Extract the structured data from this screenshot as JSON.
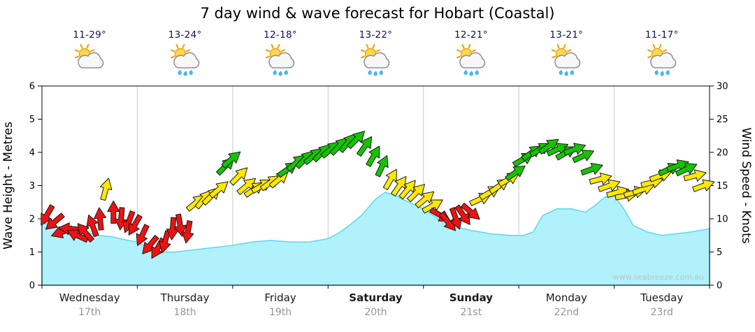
{
  "title": "7 day wind & wave forecast for Hobart (Coastal)",
  "watermark": "www.seabreeze.com.au",
  "days": [
    {
      "name": "Wednesday",
      "date": "17th",
      "temp": "11-29°",
      "icon": "partly-cloudy",
      "weekend": false
    },
    {
      "name": "Thursday",
      "date": "18th",
      "temp": "13-24°",
      "icon": "showers",
      "weekend": false
    },
    {
      "name": "Friday",
      "date": "19th",
      "temp": "12-18°",
      "icon": "showers",
      "weekend": false
    },
    {
      "name": "Saturday",
      "date": "20th",
      "temp": "13-22°",
      "icon": "showers",
      "weekend": true
    },
    {
      "name": "Sunday",
      "date": "21st",
      "temp": "12-21°",
      "icon": "showers",
      "weekend": true
    },
    {
      "name": "Monday",
      "date": "22nd",
      "temp": "13-21°",
      "icon": "showers",
      "weekend": false
    },
    {
      "name": "Tuesday",
      "date": "23rd",
      "temp": "11-17°",
      "icon": "showers",
      "weekend": false
    }
  ],
  "chart_data": {
    "type": "area",
    "title": "7 day wind & wave forecast for Hobart (Coastal)",
    "left_axis": {
      "label": "Wave Height - Metres",
      "min": 0,
      "max": 6,
      "ticks": [
        0,
        1,
        2,
        3,
        4,
        5,
        6
      ]
    },
    "right_axis": {
      "label": "Wind Speed - Knots",
      "min": 0,
      "max": 30,
      "ticks": [
        0,
        5,
        10,
        15,
        20,
        25,
        30
      ]
    },
    "x_axis": {
      "labels": [
        "Wednesday",
        "Thursday",
        "Friday",
        "Saturday",
        "Sunday",
        "Monday",
        "Tuesday"
      ],
      "dates": [
        "17th",
        "18th",
        "19th",
        "20th",
        "21st",
        "22nd",
        "23rd"
      ]
    },
    "grid": {
      "day_separators": true,
      "separator_color": "#c9c9c9"
    },
    "wave_height_metres": {
      "name": "Wave Height",
      "fill": "#b0f1fb",
      "stroke": "#5cd8ea",
      "point_format": [
        "day",
        "metres"
      ],
      "points": [
        [
          0,
          1.9
        ],
        [
          0.15,
          1.75
        ],
        [
          0.3,
          1.55
        ],
        [
          0.45,
          1.6
        ],
        [
          0.6,
          1.5
        ],
        [
          0.75,
          1.45
        ],
        [
          0.9,
          1.35
        ],
        [
          1.0,
          1.3
        ],
        [
          1.1,
          1.15
        ],
        [
          1.25,
          1.0
        ],
        [
          1.4,
          1.0
        ],
        [
          1.55,
          1.05
        ],
        [
          1.7,
          1.1
        ],
        [
          1.85,
          1.15
        ],
        [
          2.0,
          1.2
        ],
        [
          2.2,
          1.3
        ],
        [
          2.4,
          1.35
        ],
        [
          2.6,
          1.3
        ],
        [
          2.8,
          1.3
        ],
        [
          3.0,
          1.4
        ],
        [
          3.1,
          1.55
        ],
        [
          3.2,
          1.75
        ],
        [
          3.35,
          2.1
        ],
        [
          3.5,
          2.6
        ],
        [
          3.6,
          2.8
        ],
        [
          3.7,
          2.7
        ],
        [
          3.85,
          2.5
        ],
        [
          4.0,
          2.3
        ],
        [
          4.1,
          2.1
        ],
        [
          4.2,
          1.9
        ],
        [
          4.35,
          1.75
        ],
        [
          4.5,
          1.65
        ],
        [
          4.7,
          1.55
        ],
        [
          4.9,
          1.5
        ],
        [
          5.05,
          1.5
        ],
        [
          5.15,
          1.6
        ],
        [
          5.25,
          2.1
        ],
        [
          5.4,
          2.3
        ],
        [
          5.55,
          2.3
        ],
        [
          5.7,
          2.2
        ],
        [
          5.8,
          2.4
        ],
        [
          5.9,
          2.65
        ],
        [
          6.0,
          2.7
        ],
        [
          6.1,
          2.3
        ],
        [
          6.2,
          1.8
        ],
        [
          6.35,
          1.6
        ],
        [
          6.5,
          1.5
        ],
        [
          6.65,
          1.55
        ],
        [
          6.8,
          1.6
        ],
        [
          7.0,
          1.7
        ]
      ]
    },
    "wind_knots": {
      "name": "Wind Speed & Direction",
      "colors": {
        "red": "#ee1111",
        "yellow": "#ffe800",
        "green": "#15c400"
      },
      "point_format": [
        "day",
        "knots",
        "direction_deg_cw_from_east",
        "color"
      ],
      "points": [
        [
          0.05,
          10.5,
          120,
          "red"
        ],
        [
          0.13,
          9.5,
          140,
          "red"
        ],
        [
          0.21,
          8.0,
          160,
          "red"
        ],
        [
          0.29,
          8.5,
          185,
          "red"
        ],
        [
          0.37,
          7.5,
          205,
          "red"
        ],
        [
          0.45,
          8.0,
          230,
          "red"
        ],
        [
          0.53,
          9.0,
          250,
          "red"
        ],
        [
          0.61,
          10.0,
          265,
          "red"
        ],
        [
          0.67,
          14.5,
          285,
          "yellow"
        ],
        [
          0.75,
          11.0,
          270,
          "red"
        ],
        [
          0.83,
          10.0,
          95,
          "red"
        ],
        [
          0.91,
          9.5,
          110,
          "red"
        ],
        [
          0.97,
          9.0,
          120,
          "red"
        ],
        [
          1.05,
          7.5,
          115,
          "red"
        ],
        [
          1.13,
          6.0,
          130,
          "red"
        ],
        [
          1.21,
          5.5,
          120,
          "red"
        ],
        [
          1.29,
          6.5,
          105,
          "red"
        ],
        [
          1.37,
          8.5,
          95,
          "red"
        ],
        [
          1.45,
          9.0,
          80,
          "red"
        ],
        [
          1.53,
          8.0,
          100,
          "red"
        ],
        [
          1.62,
          12.5,
          320,
          "yellow"
        ],
        [
          1.7,
          13.0,
          310,
          "yellow"
        ],
        [
          1.78,
          13.5,
          315,
          "yellow"
        ],
        [
          1.86,
          14.5,
          320,
          "yellow"
        ],
        [
          1.93,
          18.0,
          315,
          "green"
        ],
        [
          1.99,
          19.0,
          320,
          "green"
        ],
        [
          2.07,
          16.5,
          315,
          "yellow"
        ],
        [
          2.15,
          15.0,
          320,
          "yellow"
        ],
        [
          2.23,
          14.5,
          325,
          "yellow"
        ],
        [
          2.31,
          15.0,
          330,
          "yellow"
        ],
        [
          2.4,
          15.5,
          325,
          "yellow"
        ],
        [
          2.49,
          16.0,
          320,
          "yellow"
        ],
        [
          2.58,
          17.5,
          325,
          "green"
        ],
        [
          2.67,
          18.5,
          320,
          "green"
        ],
        [
          2.76,
          19.0,
          315,
          "green"
        ],
        [
          2.85,
          19.5,
          320,
          "green"
        ],
        [
          2.94,
          20.0,
          315,
          "green"
        ],
        [
          3.03,
          20.5,
          320,
          "green"
        ],
        [
          3.12,
          21.0,
          315,
          "green"
        ],
        [
          3.21,
          21.5,
          310,
          "green"
        ],
        [
          3.3,
          22.0,
          315,
          "green"
        ],
        [
          3.39,
          21.0,
          305,
          "green"
        ],
        [
          3.48,
          19.5,
          300,
          "green"
        ],
        [
          3.57,
          18.0,
          295,
          "green"
        ],
        [
          3.66,
          16.0,
          300,
          "yellow"
        ],
        [
          3.75,
          15.0,
          305,
          "yellow"
        ],
        [
          3.84,
          14.5,
          310,
          "yellow"
        ],
        [
          3.93,
          14.0,
          315,
          "yellow"
        ],
        [
          4.02,
          13.0,
          320,
          "yellow"
        ],
        [
          4.1,
          12.0,
          330,
          "yellow"
        ],
        [
          4.18,
          10.5,
          30,
          "red"
        ],
        [
          4.26,
          9.5,
          50,
          "red"
        ],
        [
          4.34,
          10.0,
          70,
          "red"
        ],
        [
          4.42,
          10.5,
          55,
          "red"
        ],
        [
          4.5,
          11.0,
          40,
          "red"
        ],
        [
          4.6,
          13.0,
          335,
          "yellow"
        ],
        [
          4.7,
          14.0,
          330,
          "yellow"
        ],
        [
          4.8,
          15.0,
          325,
          "yellow"
        ],
        [
          4.9,
          16.0,
          330,
          "yellow"
        ],
        [
          4.97,
          17.0,
          325,
          "green"
        ],
        [
          5.05,
          19.0,
          330,
          "green"
        ],
        [
          5.14,
          20.0,
          325,
          "green"
        ],
        [
          5.23,
          20.5,
          330,
          "green"
        ],
        [
          5.32,
          21.0,
          325,
          "green"
        ],
        [
          5.41,
          20.5,
          335,
          "green"
        ],
        [
          5.5,
          20.0,
          330,
          "green"
        ],
        [
          5.59,
          20.5,
          340,
          "green"
        ],
        [
          5.68,
          19.5,
          335,
          "green"
        ],
        [
          5.77,
          17.5,
          340,
          "green"
        ],
        [
          5.86,
          16.0,
          345,
          "yellow"
        ],
        [
          5.95,
          15.0,
          340,
          "yellow"
        ],
        [
          6.04,
          14.0,
          345,
          "yellow"
        ],
        [
          6.13,
          13.5,
          350,
          "yellow"
        ],
        [
          6.22,
          14.0,
          345,
          "yellow"
        ],
        [
          6.31,
          14.5,
          340,
          "yellow"
        ],
        [
          6.4,
          15.5,
          345,
          "yellow"
        ],
        [
          6.49,
          16.5,
          340,
          "yellow"
        ],
        [
          6.58,
          17.5,
          335,
          "green"
        ],
        [
          6.67,
          18.0,
          340,
          "green"
        ],
        [
          6.76,
          17.5,
          335,
          "green"
        ],
        [
          6.85,
          16.5,
          345,
          "yellow"
        ],
        [
          6.94,
          15.0,
          340,
          "yellow"
        ]
      ]
    }
  }
}
